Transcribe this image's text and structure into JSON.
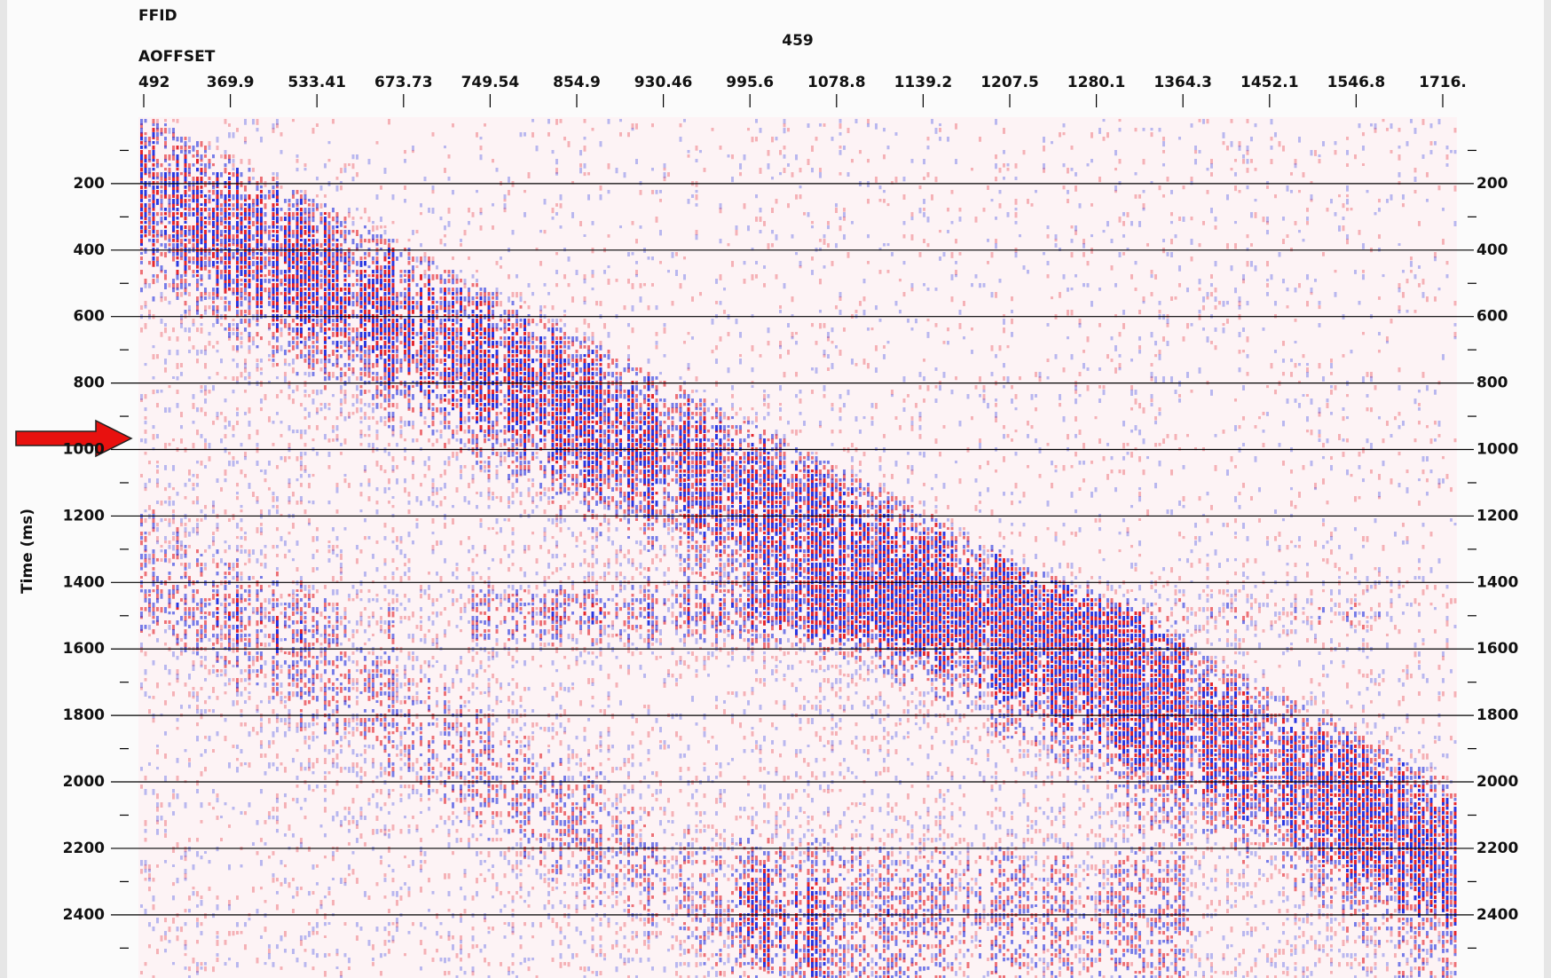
{
  "chart_data": {
    "type": "seismic",
    "header_labels": [
      "FFID",
      "AOFFSET"
    ],
    "title": "459",
    "ylabel": "Time (ms)",
    "categories": [
      "492",
      "369.9",
      "533.41",
      "673.73",
      "749.54",
      "854.9",
      "930.46",
      "995.6",
      "1078.8",
      "1139.2",
      "1207.5",
      "1280.1",
      "1364.3",
      "1452.1",
      "1546.8",
      "1716."
    ],
    "ylim": [
      0,
      2590
    ],
    "yticks": [
      200,
      400,
      600,
      800,
      1000,
      1200,
      1400,
      1600,
      1800,
      2000,
      2200,
      2400
    ],
    "minor_yticks": [
      100,
      300,
      500,
      700,
      900,
      1100,
      1300,
      1500,
      1700,
      1900,
      2100,
      2300,
      2500
    ],
    "grid": true,
    "positive_color": "#e31b23",
    "negative_color": "#1f2ee0"
  }
}
